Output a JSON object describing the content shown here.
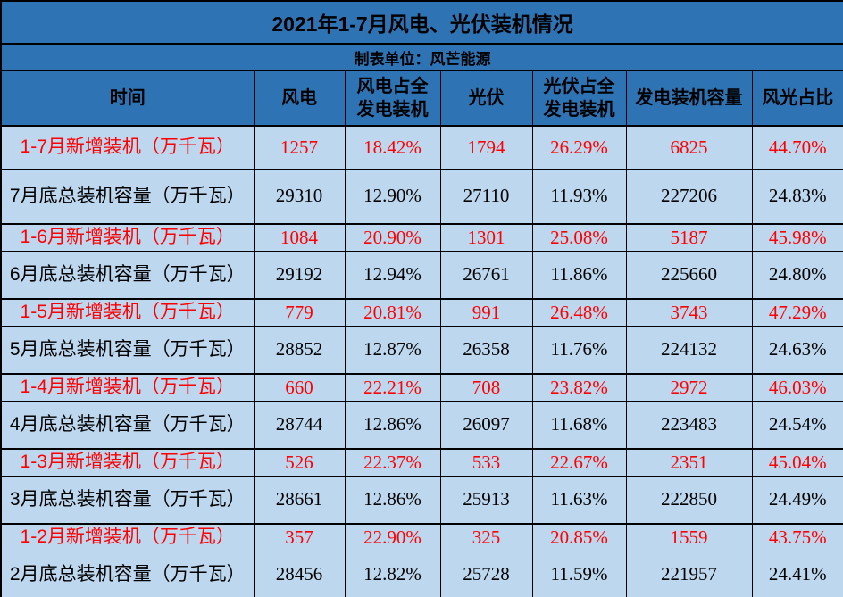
{
  "title": "2021年1-7月风电、光伏装机情况",
  "subtitle": "制表单位：风芒能源",
  "columns": [
    "时间",
    "风电",
    "风电占全发电装机",
    "光伏",
    "光伏占全发电装机",
    "发电装机容量",
    "风光占比"
  ],
  "rows": [
    {
      "type": "new",
      "cells": [
        "1-7月新增装机（万千瓦）",
        "1257",
        "18.42%",
        "1794",
        "26.29%",
        "6825",
        "44.70%"
      ]
    },
    {
      "type": "total",
      "cells": [
        "7月底总装机容量（万千瓦）",
        "29310",
        "12.90%",
        "27110",
        "11.93%",
        "227206",
        "24.83%"
      ]
    },
    {
      "type": "new",
      "cells": [
        "1-6月新增装机（万千瓦）",
        "1084",
        "20.90%",
        "1301",
        "25.08%",
        "5187",
        "45.98%"
      ]
    },
    {
      "type": "total",
      "cells": [
        "6月底总装机容量（万千瓦）",
        "29192",
        "12.94%",
        "26761",
        "11.86%",
        "225660",
        "24.80%"
      ]
    },
    {
      "type": "new",
      "cells": [
        "1-5月新增装机（万千瓦）",
        "779",
        "20.81%",
        "991",
        "26.48%",
        "3743",
        "47.29%"
      ]
    },
    {
      "type": "total",
      "cells": [
        "5月底总装机容量（万千瓦）",
        "28852",
        "12.87%",
        "26358",
        "11.76%",
        "224132",
        "24.63%"
      ]
    },
    {
      "type": "new",
      "cells": [
        "1-4月新增装机（万千瓦）",
        "660",
        "22.21%",
        "708",
        "23.82%",
        "2972",
        "46.03%"
      ]
    },
    {
      "type": "total",
      "cells": [
        "4月底总装机容量（万千瓦）",
        "28744",
        "12.86%",
        "26097",
        "11.68%",
        "223483",
        "24.54%"
      ]
    },
    {
      "type": "new",
      "cells": [
        "1-3月新增装机（万千瓦）",
        "526",
        "22.37%",
        "533",
        "22.67%",
        "2351",
        "45.04%"
      ]
    },
    {
      "type": "total",
      "cells": [
        "3月底总装机容量（万千瓦）",
        "28661",
        "12.86%",
        "25913",
        "11.63%",
        "222850",
        "24.49%"
      ]
    },
    {
      "type": "new",
      "cells": [
        "1-2月新增装机（万千瓦）",
        "357",
        "22.90%",
        "325",
        "20.85%",
        "1559",
        "43.75%"
      ]
    },
    {
      "type": "total",
      "cells": [
        "2月底总装机容量（万千瓦）",
        "28456",
        "12.82%",
        "25728",
        "11.59%",
        "221957",
        "24.41%"
      ]
    }
  ],
  "colors": {
    "header_bg": "#2E74B5",
    "body_bg": "#BDD7EE",
    "new_row_text": "#FF0000",
    "total_row_text": "#000000",
    "border": "#000000"
  },
  "chart_data": {
    "type": "table",
    "title": "2021年1-7月风电、光伏装机情况",
    "subtitle": "制表单位：风芒能源",
    "columns": [
      "时间",
      "风电",
      "风电占全发电装机",
      "光伏",
      "光伏占全发电装机",
      "发电装机容量",
      "风光占比"
    ],
    "rows": [
      [
        "1-7月新增装机（万千瓦）",
        1257,
        "18.42%",
        1794,
        "26.29%",
        6825,
        "44.70%"
      ],
      [
        "7月底总装机容量（万千瓦）",
        29310,
        "12.90%",
        27110,
        "11.93%",
        227206,
        "24.83%"
      ],
      [
        "1-6月新增装机（万千瓦）",
        1084,
        "20.90%",
        1301,
        "25.08%",
        5187,
        "45.98%"
      ],
      [
        "6月底总装机容量（万千瓦）",
        29192,
        "12.94%",
        26761,
        "11.86%",
        225660,
        "24.80%"
      ],
      [
        "1-5月新增装机（万千瓦）",
        779,
        "20.81%",
        991,
        "26.48%",
        3743,
        "47.29%"
      ],
      [
        "5月底总装机容量（万千瓦）",
        28852,
        "12.87%",
        26358,
        "11.76%",
        224132,
        "24.63%"
      ],
      [
        "1-4月新增装机（万千瓦）",
        660,
        "22.21%",
        708,
        "23.82%",
        2972,
        "46.03%"
      ],
      [
        "4月底总装机容量（万千瓦）",
        28744,
        "12.86%",
        26097,
        "11.68%",
        223483,
        "24.54%"
      ],
      [
        "1-3月新增装机（万千瓦）",
        526,
        "22.37%",
        533,
        "22.67%",
        2351,
        "45.04%"
      ],
      [
        "3月底总装机容量（万千瓦）",
        28661,
        "12.86%",
        25913,
        "11.63%",
        222850,
        "24.49%"
      ],
      [
        "1-2月新增装机（万千瓦）",
        357,
        "22.90%",
        325,
        "20.85%",
        1559,
        "43.75%"
      ],
      [
        "2月底总装机容量（万千瓦）",
        28456,
        "12.82%",
        25728,
        "11.59%",
        221957,
        "24.41%"
      ]
    ]
  }
}
